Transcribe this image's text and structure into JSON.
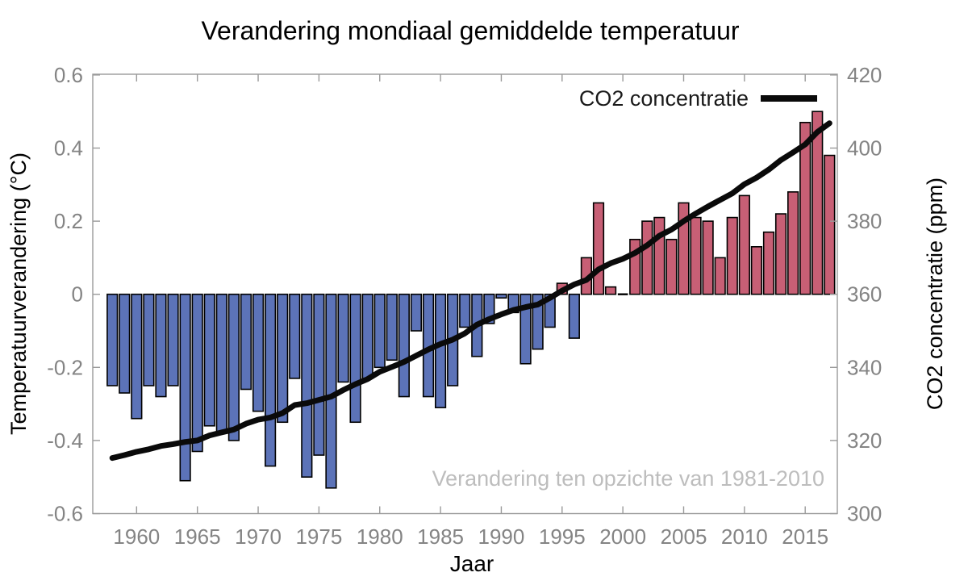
{
  "title": "Verandering mondiaal gemiddelde temperatuur",
  "legend": {
    "label": "CO2 concentratie"
  },
  "annotation": "Verandering ten opzichte van 1981-2010",
  "axes": {
    "x_label": "Jaar",
    "y_left_label": "Temperatuurverandering (°C)",
    "y_right_label": "CO2 concentratie (ppm)",
    "x_ticks": [
      {
        "value": 1960,
        "label": "1960"
      },
      {
        "value": 1965,
        "label": "1965"
      },
      {
        "value": 1970,
        "label": "1970"
      },
      {
        "value": 1975,
        "label": "1975"
      },
      {
        "value": 1980,
        "label": "1980"
      },
      {
        "value": 1985,
        "label": "1985"
      },
      {
        "value": 1990,
        "label": "1990"
      },
      {
        "value": 1995,
        "label": "1995"
      },
      {
        "value": 2000,
        "label": "2000"
      },
      {
        "value": 2005,
        "label": "2005"
      },
      {
        "value": 2010,
        "label": "2010"
      },
      {
        "value": 2015,
        "label": "2015"
      }
    ],
    "y_left_ticks": [
      {
        "value": 0.6,
        "label": "0.6"
      },
      {
        "value": 0.4,
        "label": "0.4"
      },
      {
        "value": 0.2,
        "label": "0.2"
      },
      {
        "value": 0,
        "label": "0"
      },
      {
        "value": -0.2,
        "label": "-0.2"
      },
      {
        "value": -0.4,
        "label": "-0.4"
      },
      {
        "value": -0.6,
        "label": "-0.6"
      }
    ],
    "y_right_ticks": [
      {
        "value": 420,
        "label": "420"
      },
      {
        "value": 400,
        "label": "400"
      },
      {
        "value": 380,
        "label": "380"
      },
      {
        "value": 360,
        "label": "360"
      },
      {
        "value": 340,
        "label": "340"
      },
      {
        "value": 320,
        "label": "320"
      },
      {
        "value": 300,
        "label": "300"
      }
    ]
  },
  "colors": {
    "bar_positive": "#c75f75",
    "bar_negative": "#5c73b8",
    "bar_outline": "#000000",
    "co2_line": "#0a0a0a",
    "tick_label": "#848484",
    "spine": "#9a9a9a",
    "annotation": "#bdbdbd",
    "text": "#000000"
  },
  "chart_data": {
    "type": "bar+line",
    "x": [
      1958,
      1959,
      1960,
      1961,
      1962,
      1963,
      1964,
      1965,
      1966,
      1967,
      1968,
      1969,
      1970,
      1971,
      1972,
      1973,
      1974,
      1975,
      1976,
      1977,
      1978,
      1979,
      1980,
      1981,
      1982,
      1983,
      1984,
      1985,
      1986,
      1987,
      1988,
      1989,
      1990,
      1991,
      1992,
      1993,
      1994,
      1995,
      1996,
      1997,
      1998,
      1999,
      2000,
      2001,
      2002,
      2003,
      2004,
      2005,
      2006,
      2007,
      2008,
      2009,
      2010,
      2011,
      2012,
      2013,
      2014,
      2015,
      2016,
      2017
    ],
    "series": [
      {
        "name": "Temperatuurverandering",
        "type": "bar",
        "unit": "°C",
        "axis": "left",
        "values": [
          -0.25,
          -0.27,
          -0.34,
          -0.25,
          -0.28,
          -0.25,
          -0.51,
          -0.43,
          -0.36,
          -0.38,
          -0.4,
          -0.26,
          -0.32,
          -0.47,
          -0.35,
          -0.23,
          -0.5,
          -0.44,
          -0.53,
          -0.24,
          -0.35,
          -0.23,
          -0.2,
          -0.18,
          -0.28,
          -0.1,
          -0.28,
          -0.31,
          -0.25,
          -0.09,
          -0.17,
          -0.08,
          -0.01,
          -0.05,
          -0.19,
          -0.15,
          -0.09,
          0.03,
          -0.12,
          0.1,
          0.25,
          0.02,
          0.0,
          0.15,
          0.2,
          0.21,
          0.15,
          0.25,
          0.21,
          0.2,
          0.1,
          0.21,
          0.27,
          0.13,
          0.17,
          0.22,
          0.28,
          0.47,
          0.5,
          0.38
        ]
      },
      {
        "name": "CO2 concentratie",
        "type": "line",
        "unit": "ppm",
        "axis": "right",
        "values": [
          315.2,
          316.0,
          316.9,
          317.6,
          318.5,
          319.0,
          319.6,
          320.0,
          321.4,
          322.2,
          323.0,
          324.6,
          325.7,
          326.3,
          327.5,
          329.7,
          330.2,
          331.1,
          332.0,
          333.8,
          335.4,
          336.8,
          338.8,
          340.1,
          341.5,
          343.2,
          344.9,
          346.4,
          347.6,
          349.3,
          351.7,
          353.2,
          354.5,
          355.7,
          356.5,
          357.2,
          359.0,
          361.0,
          362.7,
          363.9,
          366.8,
          368.5,
          369.7,
          371.3,
          373.4,
          376.0,
          377.7,
          380.0,
          382.1,
          384.0,
          385.8,
          387.6,
          390.1,
          391.9,
          394.1,
          396.7,
          398.8,
          401.0,
          404.4,
          406.8
        ]
      }
    ],
    "ylim_left": [
      -0.6,
      0.6
    ],
    "ylim_right": [
      300,
      420
    ],
    "baseline_period": "1981-2010",
    "grid": false,
    "legend_position": "top-right-inside"
  }
}
